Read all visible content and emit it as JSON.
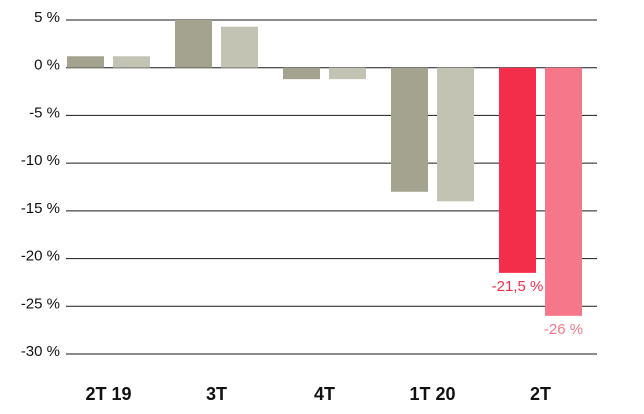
{
  "chart_data": {
    "type": "bar",
    "title": "",
    "xlabel": "",
    "ylabel": "",
    "categories": [
      "2T 19",
      "3T",
      "4T",
      "1T 20",
      "2T"
    ],
    "series": [
      {
        "values": [
          1.2,
          5.0,
          -1.2,
          -13.0,
          -21.5
        ]
      },
      {
        "values": [
          1.2,
          4.3,
          -1.2,
          -14.0,
          -26.0
        ]
      }
    ],
    "ylim": [
      -30,
      5
    ],
    "yticks": [
      5,
      0,
      -5,
      -10,
      -15,
      -20,
      -25,
      -30
    ],
    "ytick_labels": [
      "5 %",
      "0 %",
      "-5 %",
      "-10 %",
      "-15 %",
      "-20 %",
      "-25 %",
      "-30 %"
    ],
    "data_labels": [
      {
        "category_index": 4,
        "series_index": 0,
        "text": "-21,5 %"
      },
      {
        "category_index": 4,
        "series_index": 1,
        "text": "-26 %"
      }
    ],
    "grid": true,
    "colors": {
      "series_0": "#a3a390",
      "series_1": "#c3c3b4",
      "highlight_0": "#f22e4a",
      "highlight_1": "#f7778a"
    },
    "highlight_category_index": 4
  }
}
